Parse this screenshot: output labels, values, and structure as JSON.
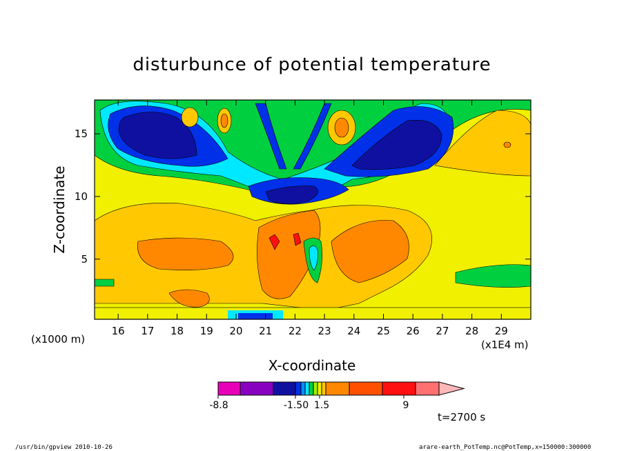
{
  "chart_data": {
    "type": "heatmap",
    "title": "disturbunce of potential temperature",
    "xlabel": "X-coordinate",
    "ylabel": "Z-coordinate",
    "x_unit_left": "(x1000 m)",
    "x_unit_right": "(x1E4 m)",
    "xlim": [
      15.2,
      30.0
    ],
    "ylim": [
      0.2,
      17.7
    ],
    "xticks": [
      16,
      17,
      18,
      19,
      20,
      21,
      22,
      23,
      24,
      25,
      26,
      27,
      28,
      29
    ],
    "yticks": [
      5,
      10,
      15
    ],
    "grid": false,
    "colorbar": {
      "tick_labels": [
        "-8.8",
        "-1.50",
        "1.5",
        "9"
      ],
      "colors": [
        "#e800b8",
        "#8800c0",
        "#1010a0",
        "#0030e8",
        "#0090ff",
        "#00e8ff",
        "#00d040",
        "#a0f000",
        "#f0f000",
        "#ffc800",
        "#ff8800",
        "#ff5000",
        "#ff1010",
        "#ff7070",
        "#ffb8b8"
      ]
    },
    "time_label": "t=2700 s"
  },
  "footer": {
    "left": "/usr/bin/gpview   2010-10-26",
    "right": "arare-earth_PotTemp.nc@PotTemp,x=150000:300000"
  }
}
